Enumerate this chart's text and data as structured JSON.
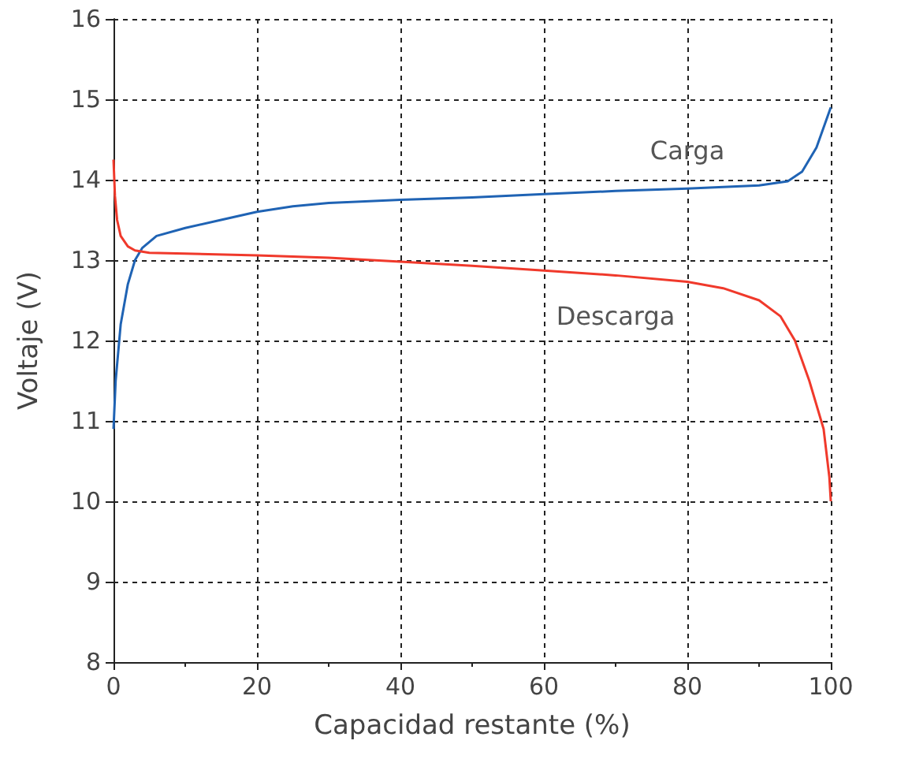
{
  "chart_data": {
    "type": "line",
    "xlabel": "Capacidad restante (%)",
    "ylabel": "Voltaje (V)",
    "xlim": [
      0,
      100
    ],
    "xticks": [
      0,
      20,
      40,
      60,
      80,
      100
    ],
    "ylim": [
      8,
      16
    ],
    "yticks": [
      8,
      9,
      10,
      11,
      12,
      13,
      14,
      15,
      16
    ],
    "grid": true,
    "legend": false,
    "marker": "none",
    "line_style": "solid",
    "series": [
      {
        "name": "Carga",
        "color": "#1f63b4",
        "x": [
          0,
          0.3,
          1,
          2,
          3,
          4,
          6,
          10,
          15,
          20,
          25,
          30,
          40,
          50,
          60,
          70,
          80,
          90,
          94,
          96,
          98,
          100
        ],
        "values": [
          10.9,
          11.5,
          12.2,
          12.7,
          13.0,
          13.15,
          13.3,
          13.4,
          13.5,
          13.6,
          13.67,
          13.71,
          13.75,
          13.78,
          13.82,
          13.86,
          13.89,
          13.93,
          13.98,
          14.1,
          14.4,
          14.9
        ]
      },
      {
        "name": "Descarga",
        "color": "#f0392b",
        "x": [
          0,
          0.2,
          0.5,
          1,
          2,
          3,
          5,
          10,
          20,
          30,
          40,
          50,
          60,
          70,
          80,
          85,
          90,
          93,
          95,
          97,
          99,
          99.8,
          100
        ],
        "values": [
          14.25,
          13.8,
          13.5,
          13.3,
          13.17,
          13.12,
          13.09,
          13.08,
          13.06,
          13.03,
          12.98,
          12.93,
          12.87,
          12.81,
          12.73,
          12.65,
          12.5,
          12.3,
          12.0,
          11.5,
          10.9,
          10.3,
          10.0
        ]
      }
    ]
  }
}
